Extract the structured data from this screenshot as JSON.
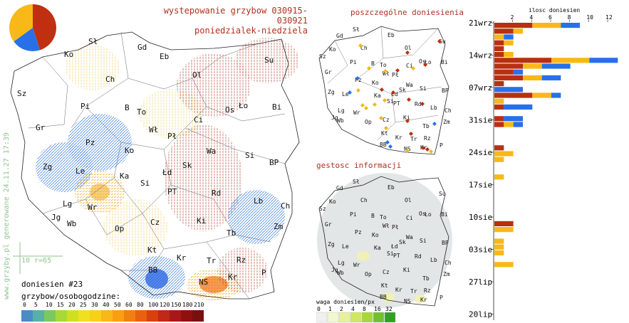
{
  "title": {
    "line1": "wystepowanie grzybow 030915-030921",
    "line2": "poniedzialek-niedziela"
  },
  "panels": {
    "points_title": "poszczególne doniesienia",
    "density_title": "gestosc informacji"
  },
  "side_text": "www.grzyby.pl generowane 24.11.27 17:39",
  "scale_label": "10 r=65",
  "report_count": "doniesien #23",
  "legend": {
    "title": "grzybow/osobogodzine:",
    "ticks": [
      "0",
      "5",
      "10",
      "15",
      "20",
      "25",
      "30",
      "40",
      "50",
      "60",
      "80",
      "100",
      "120",
      "150",
      "180",
      "210"
    ],
    "colors": [
      "#4a8cc4",
      "#58b0a8",
      "#7cc860",
      "#a8d838",
      "#d0e020",
      "#f0e020",
      "#f8d018",
      "#f8b818",
      "#f8a010",
      "#f08010",
      "#e86010",
      "#d84010",
      "#c02818",
      "#a81818",
      "#901010",
      "#781010"
    ]
  },
  "weight_legend": {
    "title": "waga doniesien/px",
    "ticks": [
      "0",
      "1",
      "2",
      "4",
      "8",
      "16",
      "32"
    ],
    "colors": [
      "#f0f0f0",
      "#f0f8d0",
      "#e8f0a0",
      "#d0e860",
      "#a8d838",
      "#70c030",
      "#30a020"
    ]
  },
  "regions": [
    {
      "label": "Sł"
    },
    {
      "label": "Gd"
    },
    {
      "label": "Eb"
    },
    {
      "label": "Ol"
    },
    {
      "label": "Su"
    },
    {
      "label": "Ko"
    },
    {
      "label": "Ch"
    },
    {
      "label": "Sz"
    },
    {
      "label": "Pi"
    },
    {
      "label": "B"
    },
    {
      "label": "To"
    },
    {
      "label": "Ci"
    },
    {
      "label": "Os"
    },
    {
      "label": "Ło"
    },
    {
      "label": "Bi"
    },
    {
      "label": "Gr"
    },
    {
      "label": "Wł"
    },
    {
      "label": "Pł"
    },
    {
      "label": "Pz"
    },
    {
      "label": "Ko"
    },
    {
      "label": "Wa"
    },
    {
      "label": "Si"
    },
    {
      "label": "Zg"
    },
    {
      "label": "Le"
    },
    {
      "label": "Ka"
    },
    {
      "label": "Łd"
    },
    {
      "label": "Sk"
    },
    {
      "label": "BP"
    },
    {
      "label": "Si"
    },
    {
      "label": "Lg"
    },
    {
      "label": "PT"
    },
    {
      "label": "Rd"
    },
    {
      "label": "Lb"
    },
    {
      "label": "Ch"
    },
    {
      "label": "Wr"
    },
    {
      "label": "Jg"
    },
    {
      "label": "Wb"
    },
    {
      "label": "Op"
    },
    {
      "label": "Cz"
    },
    {
      "label": "Ki"
    },
    {
      "label": "Zm"
    },
    {
      "label": "Tb"
    },
    {
      "label": "Kt"
    },
    {
      "label": "Kr"
    },
    {
      "label": "Tr"
    },
    {
      "label": "Rz"
    },
    {
      "label": "BB"
    },
    {
      "label": "NS"
    },
    {
      "label": "Kr"
    },
    {
      "label": "P"
    }
  ],
  "chart_data": {
    "type": "bar",
    "title": "ilosc doniesien",
    "x_ticks": [
      2,
      4,
      6,
      8,
      10,
      12
    ],
    "xlim": [
      0,
      13.5
    ],
    "date_labels": [
      "21wrz",
      "14wrz",
      "07wrz",
      "31sie",
      "24sie",
      "17sie",
      "10sie",
      "03sie",
      "27lip",
      "20lip"
    ],
    "series_colors": {
      "red": "#b83010",
      "orange": "#f8b818",
      "blue": "#2870e8"
    },
    "rows": [
      {
        "red": 4,
        "orange": 3,
        "blue": 2
      },
      {
        "red": 2,
        "orange": 1,
        "blue": 0
      },
      {
        "red": 0,
        "orange": 1,
        "blue": 1
      },
      {
        "red": 1,
        "orange": 1,
        "blue": 0
      },
      {
        "red": 1,
        "orange": 0,
        "blue": 0
      },
      {
        "red": 1,
        "orange": 1,
        "blue": 0
      },
      {
        "red": 6,
        "orange": 4,
        "blue": 3
      },
      {
        "red": 3,
        "orange": 2,
        "blue": 3
      },
      {
        "red": 2,
        "orange": 0,
        "blue": 1
      },
      {
        "red": 3,
        "orange": 2,
        "blue": 2
      },
      {
        "red": 1,
        "orange": 0,
        "blue": 0
      },
      {
        "red": 0,
        "orange": 0,
        "blue": 3
      },
      {
        "red": 4,
        "orange": 2,
        "blue": 1
      },
      {
        "red": 0,
        "orange": 1,
        "blue": 0
      },
      {
        "red": 1,
        "orange": 0,
        "blue": 3
      },
      {
        "red": 0,
        "orange": 0,
        "blue": 0
      },
      {
        "red": 1,
        "orange": 0,
        "blue": 2
      },
      {
        "red": 1,
        "orange": 1,
        "blue": 1
      },
      {
        "red": 0,
        "orange": 0,
        "blue": 0
      },
      {
        "red": 0,
        "orange": 0,
        "blue": 0
      },
      {
        "red": 0,
        "orange": 0,
        "blue": 0
      },
      {
        "red": 1,
        "orange": 0,
        "blue": 0
      },
      {
        "red": 0,
        "orange": 2,
        "blue": 0
      },
      {
        "red": 0,
        "orange": 1,
        "blue": 0
      },
      {
        "red": 0,
        "orange": 0,
        "blue": 0
      },
      {
        "red": 0,
        "orange": 0,
        "blue": 0
      },
      {
        "red": 0,
        "orange": 1,
        "blue": 0
      },
      {
        "red": 0,
        "orange": 0,
        "blue": 0
      },
      {
        "red": 0,
        "orange": 0,
        "blue": 0
      },
      {
        "red": 0,
        "orange": 0,
        "blue": 0
      },
      {
        "red": 0,
        "orange": 0,
        "blue": 0
      },
      {
        "red": 0,
        "orange": 0,
        "blue": 0
      },
      {
        "red": 0,
        "orange": 0,
        "blue": 0
      },
      {
        "red": 0,
        "orange": 0,
        "blue": 0
      },
      {
        "red": 2,
        "orange": 0,
        "blue": 0
      },
      {
        "red": 0,
        "orange": 2,
        "blue": 0
      },
      {
        "red": 0,
        "orange": 0,
        "blue": 0
      },
      {
        "red": 0,
        "orange": 1,
        "blue": 0
      },
      {
        "red": 0,
        "orange": 1,
        "blue": 0
      },
      {
        "red": 0,
        "orange": 1,
        "blue": 0
      },
      {
        "red": 0,
        "orange": 0,
        "blue": 0
      },
      {
        "red": 0,
        "orange": 2,
        "blue": 0
      }
    ]
  },
  "pie": {
    "slices": [
      {
        "color": "#c03010",
        "value": 45
      },
      {
        "color": "#2870e8",
        "value": 20
      },
      {
        "color": "#f8b818",
        "value": 35
      }
    ]
  }
}
